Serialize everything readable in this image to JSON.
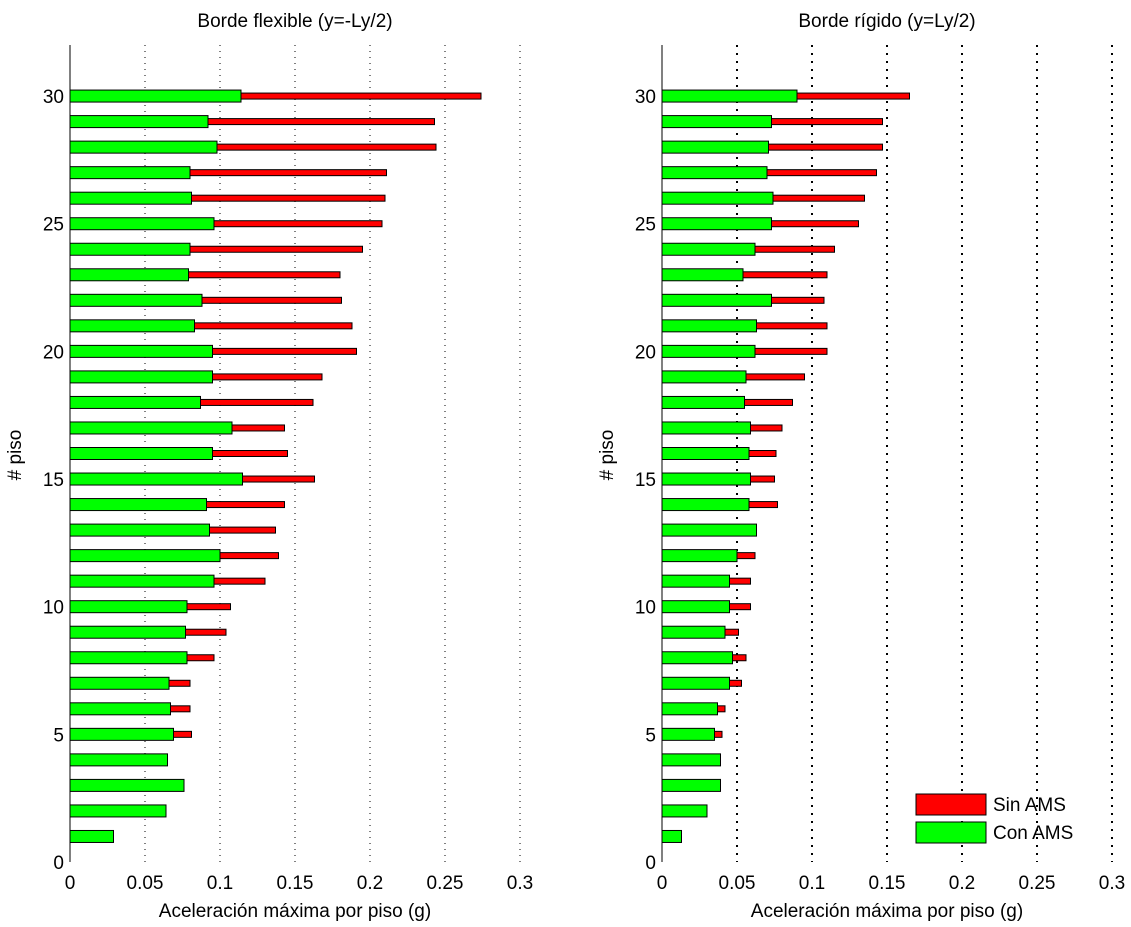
{
  "colors": {
    "sin_ams": "#ff0000",
    "con_ams": "#00ff00",
    "edge": "#000000"
  },
  "chart_data": [
    {
      "type": "bar",
      "orientation": "horizontal",
      "title": "Borde flexible (y=-Ly/2)",
      "xlabel": "Aceleración máxima por piso (g)",
      "ylabel": "# piso",
      "xlim": [
        0,
        0.3
      ],
      "ylim": [
        0,
        32
      ],
      "xticks": [
        "0",
        "0.05",
        "0.1",
        "0.15",
        "0.2",
        "0.25",
        "0.3"
      ],
      "yticks": [
        "0",
        "5",
        "10",
        "15",
        "20",
        "25",
        "30"
      ],
      "grid": "vertical dotted",
      "floors": [
        1,
        2,
        3,
        4,
        5,
        6,
        7,
        8,
        9,
        10,
        11,
        12,
        13,
        14,
        15,
        16,
        17,
        18,
        19,
        20,
        21,
        22,
        23,
        24,
        25,
        26,
        27,
        28,
        29,
        30
      ],
      "series": [
        {
          "name": "Sin AMS",
          "values": [
            0.029,
            0.064,
            0.076,
            0.065,
            0.081,
            0.08,
            0.08,
            0.096,
            0.104,
            0.107,
            0.13,
            0.139,
            0.137,
            0.143,
            0.163,
            0.145,
            0.143,
            0.162,
            0.168,
            0.191,
            0.188,
            0.181,
            0.18,
            0.195,
            0.208,
            0.21,
            0.211,
            0.244,
            0.243,
            0.274
          ]
        },
        {
          "name": "Con AMS",
          "values": [
            0.029,
            0.064,
            0.076,
            0.065,
            0.069,
            0.067,
            0.066,
            0.078,
            0.077,
            0.078,
            0.096,
            0.1,
            0.093,
            0.091,
            0.115,
            0.095,
            0.108,
            0.087,
            0.095,
            0.095,
            0.083,
            0.088,
            0.079,
            0.08,
            0.096,
            0.081,
            0.08,
            0.098,
            0.092,
            0.114
          ]
        }
      ]
    },
    {
      "type": "bar",
      "orientation": "horizontal",
      "title": "Borde rígido (y=Ly/2)",
      "xlabel": "Aceleración máxima por piso (g)",
      "ylabel": "# piso",
      "xlim": [
        0,
        0.3
      ],
      "ylim": [
        0,
        32
      ],
      "xticks": [
        "0",
        "0.05",
        "0.1",
        "0.15",
        "0.2",
        "0.25",
        "0.3"
      ],
      "yticks": [
        "0",
        "5",
        "10",
        "15",
        "20",
        "25",
        "30"
      ],
      "grid": "vertical dotted",
      "floors": [
        1,
        2,
        3,
        4,
        5,
        6,
        7,
        8,
        9,
        10,
        11,
        12,
        13,
        14,
        15,
        16,
        17,
        18,
        19,
        20,
        21,
        22,
        23,
        24,
        25,
        26,
        27,
        28,
        29,
        30
      ],
      "series": [
        {
          "name": "Sin AMS",
          "values": [
            0.013,
            0.03,
            0.039,
            0.039,
            0.04,
            0.042,
            0.053,
            0.056,
            0.051,
            0.059,
            0.059,
            0.062,
            0.063,
            0.077,
            0.075,
            0.076,
            0.08,
            0.087,
            0.095,
            0.11,
            0.11,
            0.108,
            0.11,
            0.115,
            0.131,
            0.135,
            0.143,
            0.147,
            0.147,
            0.165
          ]
        },
        {
          "name": "Con AMS",
          "values": [
            0.013,
            0.03,
            0.039,
            0.039,
            0.035,
            0.037,
            0.045,
            0.047,
            0.042,
            0.045,
            0.045,
            0.05,
            0.063,
            0.058,
            0.059,
            0.058,
            0.059,
            0.055,
            0.056,
            0.062,
            0.063,
            0.073,
            0.054,
            0.062,
            0.073,
            0.074,
            0.07,
            0.071,
            0.073,
            0.09
          ]
        }
      ],
      "legend": {
        "position": "bottom-right",
        "entries": [
          "Sin AMS",
          "Con AMS"
        ]
      }
    }
  ]
}
